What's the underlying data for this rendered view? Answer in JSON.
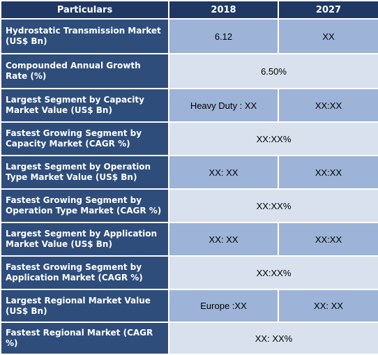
{
  "header": {
    "col1": "Particulars",
    "col2": "2018",
    "col3": "2027"
  },
  "rows": [
    {
      "label": "Hydrostatic Transmission  Market (US$ Bn)",
      "v2018": "6.12",
      "v2027": "XX"
    },
    {
      "label": "Compounded Annual Growth Rate (%)",
      "merged": "6.50%"
    },
    {
      "label": "Largest Segment by Capacity Market Value (US$ Bn)",
      "v2018": "Heavy Duty : XX",
      "v2027": "XX:XX"
    },
    {
      "label": "Fastest Growing Segment by Capacity Market (CAGR %)",
      "merged": "XX:XX%"
    },
    {
      "label": "Largest Segment by Operation Type Market Value (US$ Bn)",
      "v2018": "XX: XX",
      "v2027": "XX:XX"
    },
    {
      "label": "Fastest Growing Segment by Operation Type Market (CAGR %)",
      "merged": "XX:XX%"
    },
    {
      "label": "Largest Segment by Application Market Value (US$ Bn)",
      "v2018": "XX: XX",
      "v2027": "XX:XX"
    },
    {
      "label": "Fastest Growing Segment by Application Market (CAGR %)",
      "merged": "XX:XX%"
    },
    {
      "label": "Largest Regional Market Value (US$ Bn)",
      "v2018": "Europe :XX",
      "v2027": "XX: XX"
    },
    {
      "label": "Fastest Regional Market (CAGR %)",
      "merged": "XX: XX%"
    }
  ]
}
